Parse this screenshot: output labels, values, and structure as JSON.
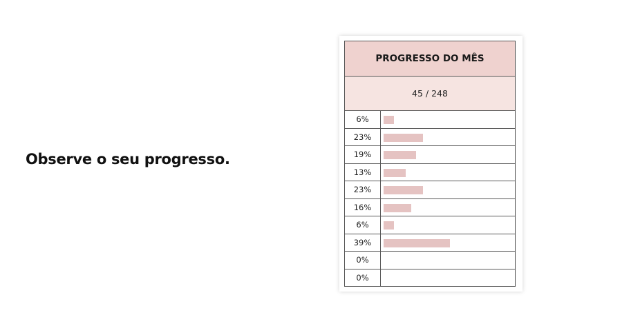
{
  "headline": "Observe o seu progresso.",
  "tracker": {
    "title": "PROGRESSO DO MÊS",
    "count": "45 / 248",
    "bar_color": "#e5c3c2",
    "header_color": "#efd2cf",
    "rows": [
      {
        "label": "6%",
        "value": 6
      },
      {
        "label": "23%",
        "value": 23
      },
      {
        "label": "19%",
        "value": 19
      },
      {
        "label": "13%",
        "value": 13
      },
      {
        "label": "23%",
        "value": 23
      },
      {
        "label": "16%",
        "value": 16
      },
      {
        "label": "6%",
        "value": 6
      },
      {
        "label": "39%",
        "value": 39
      },
      {
        "label": "0%",
        "value": 0
      },
      {
        "label": "0%",
        "value": 0
      }
    ]
  }
}
